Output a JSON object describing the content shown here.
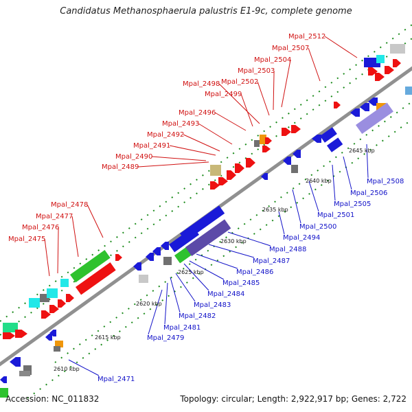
{
  "title": "Candidatus Methanosphaerula palustris E1-9c, complete genome",
  "footer": {
    "accession": "Accession: NC_011832",
    "summary": "Topology: circular; Length: 2,922,917 bp; Genes: 2,722"
  },
  "colors": {
    "forward_label": "#d01010",
    "reverse_label": "#1010c8",
    "backbone": "#909090",
    "tick": "#1a8a1a"
  },
  "kbp_ticks": [
    "2610 kbp",
    "2615 kbp",
    "2620 kbp",
    "2625 kbp",
    "2630 kbp",
    "2635 kbp",
    "2640 kbp",
    "2645 kbp"
  ],
  "forward_genes": [
    "Mpal_2475",
    "Mpal_2476",
    "Mpal_2477",
    "Mpal_2478",
    "Mpal_2489",
    "Mpal_2490",
    "Mpal_2491",
    "Mpal_2492",
    "Mpal_2493",
    "Mpal_2496",
    "Mpal_2498",
    "Mpal_2499",
    "Mpal_2502",
    "Mpal_2503",
    "Mpal_2504",
    "Mpal_2507",
    "Mpal_2512"
  ],
  "reverse_genes": [
    "Mpal_2471",
    "Mpal_2479",
    "Mpal_2481",
    "Mpal_2482",
    "Mpal_2483",
    "Mpal_2484",
    "Mpal_2485",
    "Mpal_2486",
    "Mpal_2487",
    "Mpal_2488",
    "Mpal_2494",
    "Mpal_2500",
    "Mpal_2501",
    "Mpal_2505",
    "Mpal_2506",
    "Mpal_2508"
  ]
}
